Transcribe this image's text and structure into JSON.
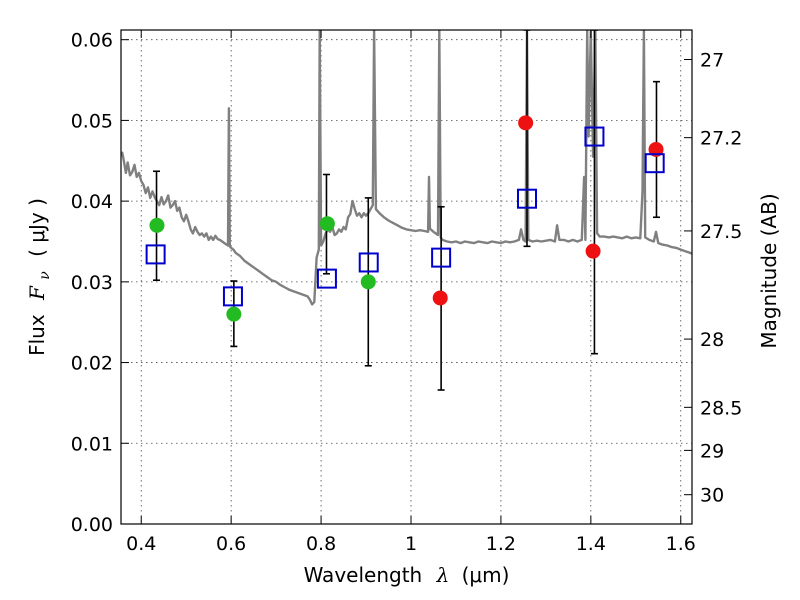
{
  "chart_data": {
    "type": "scatter",
    "title": "",
    "xlabel": {
      "prefix": "Wavelength",
      "symbol": "λ",
      "unit": "(μm)"
    },
    "ylabel": {
      "prefix": "Flux",
      "symbol": "F",
      "subscript": "ν",
      "unit": "( μJy )"
    },
    "y2label": "Magnitude (AB)",
    "xlim": [
      0.355,
      1.625
    ],
    "ylim": [
      0.0,
      0.0612
    ],
    "grid": true,
    "xticks": [
      0.4,
      0.6,
      0.8,
      1.0,
      1.2,
      1.4,
      1.6
    ],
    "xtick_labels": [
      "0.4",
      "0.6",
      "0.8",
      "1",
      "1.2",
      "1.4",
      "1.6"
    ],
    "yticks": [
      0.0,
      0.01,
      0.02,
      0.03,
      0.04,
      0.05,
      0.06
    ],
    "ytick_labels": [
      "0.00",
      "0.01",
      "0.02",
      "0.03",
      "0.04",
      "0.05",
      "0.06"
    ],
    "y2ticks": [
      27,
      27.2,
      27.5,
      28,
      28.5,
      29,
      30
    ],
    "y2tick_labels": [
      "27",
      "27.2",
      "27.5",
      "28",
      "28.5",
      "29",
      "30"
    ],
    "colors": {
      "detected": "#22bb22",
      "non_detected": "#ee1111",
      "model": "#0000cc",
      "template": "#808080",
      "errorbar": "#000000"
    },
    "series": [
      {
        "name": "observed-detections",
        "marker": "circle",
        "points": [
          {
            "x": 0.435,
            "y": 0.037
          },
          {
            "x": 0.606,
            "y": 0.026
          },
          {
            "x": 0.814,
            "y": 0.0372
          },
          {
            "x": 0.905,
            "y": 0.03
          }
        ]
      },
      {
        "name": "observed-low-significance",
        "marker": "circle",
        "points": [
          {
            "x": 1.065,
            "y": 0.028
          },
          {
            "x": 1.255,
            "y": 0.0497
          },
          {
            "x": 1.405,
            "y": 0.0338
          },
          {
            "x": 1.545,
            "y": 0.0464
          }
        ]
      },
      {
        "name": "model-photometry",
        "marker": "open-square",
        "points": [
          {
            "x": 0.432,
            "y": 0.0334
          },
          {
            "x": 0.604,
            "y": 0.0282
          },
          {
            "x": 0.813,
            "y": 0.0304
          },
          {
            "x": 0.906,
            "y": 0.0324
          },
          {
            "x": 1.067,
            "y": 0.033
          },
          {
            "x": 1.258,
            "y": 0.0403
          },
          {
            "x": 1.408,
            "y": 0.048
          },
          {
            "x": 1.542,
            "y": 0.0447
          }
        ]
      }
    ],
    "errorbars": [
      {
        "x": 0.434,
        "low": 0.0302,
        "high": 0.0437
      },
      {
        "x": 0.606,
        "low": 0.022,
        "high": 0.0301
      },
      {
        "x": 0.812,
        "low": 0.031,
        "high": 0.0433
      },
      {
        "x": 0.905,
        "low": 0.0196,
        "high": 0.0404
      },
      {
        "x": 1.067,
        "low": 0.0166,
        "high": 0.0393
      },
      {
        "x": 1.258,
        "low": 0.0344,
        "high": 0.0612
      },
      {
        "x": 1.408,
        "low": 0.0211,
        "high": 0.0612
      },
      {
        "x": 1.546,
        "low": 0.038,
        "high": 0.0548
      }
    ],
    "template_spectrum": [
      [
        0.355,
        0.0456
      ],
      [
        0.358,
        0.046
      ],
      [
        0.362,
        0.0448
      ],
      [
        0.366,
        0.0435
      ],
      [
        0.37,
        0.0448
      ],
      [
        0.375,
        0.0432
      ],
      [
        0.38,
        0.0436
      ],
      [
        0.385,
        0.0445
      ],
      [
        0.39,
        0.043
      ],
      [
        0.395,
        0.0435
      ],
      [
        0.4,
        0.0425
      ],
      [
        0.405,
        0.042
      ],
      [
        0.41,
        0.041
      ],
      [
        0.415,
        0.0417
      ],
      [
        0.42,
        0.0404
      ],
      [
        0.425,
        0.0412
      ],
      [
        0.43,
        0.0405
      ],
      [
        0.435,
        0.04
      ],
      [
        0.44,
        0.0395
      ],
      [
        0.445,
        0.0405
      ],
      [
        0.45,
        0.0396
      ],
      [
        0.455,
        0.04
      ],
      [
        0.46,
        0.0407
      ],
      [
        0.465,
        0.0392
      ],
      [
        0.47,
        0.0395
      ],
      [
        0.475,
        0.04
      ],
      [
        0.48,
        0.0388
      ],
      [
        0.485,
        0.0392
      ],
      [
        0.49,
        0.038
      ],
      [
        0.495,
        0.0375
      ],
      [
        0.5,
        0.0383
      ],
      [
        0.505,
        0.0375
      ],
      [
        0.51,
        0.0365
      ],
      [
        0.515,
        0.036
      ],
      [
        0.52,
        0.0368
      ],
      [
        0.525,
        0.0362
      ],
      [
        0.53,
        0.0358
      ],
      [
        0.535,
        0.036
      ],
      [
        0.54,
        0.0356
      ],
      [
        0.545,
        0.036
      ],
      [
        0.55,
        0.0352
      ],
      [
        0.555,
        0.0356
      ],
      [
        0.56,
        0.0352
      ],
      [
        0.565,
        0.0357
      ],
      [
        0.57,
        0.0353
      ],
      [
        0.575,
        0.0352
      ],
      [
        0.58,
        0.035
      ],
      [
        0.585,
        0.0348
      ],
      [
        0.59,
        0.0346
      ],
      [
        0.593,
        0.0345
      ],
      [
        0.595,
        0.0515
      ],
      [
        0.597,
        0.0344
      ],
      [
        0.6,
        0.0342
      ],
      [
        0.605,
        0.034
      ],
      [
        0.61,
        0.0336
      ],
      [
        0.62,
        0.0332
      ],
      [
        0.63,
        0.0326
      ],
      [
        0.64,
        0.0322
      ],
      [
        0.65,
        0.0318
      ],
      [
        0.66,
        0.0314
      ],
      [
        0.67,
        0.031
      ],
      [
        0.68,
        0.0306
      ],
      [
        0.69,
        0.0302
      ],
      [
        0.7,
        0.03
      ],
      [
        0.71,
        0.0296
      ],
      [
        0.72,
        0.0293
      ],
      [
        0.73,
        0.029
      ],
      [
        0.74,
        0.0288
      ],
      [
        0.75,
        0.0286
      ],
      [
        0.76,
        0.0284
      ],
      [
        0.77,
        0.0282
      ],
      [
        0.775,
        0.0278
      ],
      [
        0.78,
        0.0272
      ],
      [
        0.785,
        0.0275
      ],
      [
        0.79,
        0.033
      ],
      [
        0.795,
        0.034
      ],
      [
        0.797,
        0.0612
      ],
      [
        0.8,
        0.0345
      ],
      [
        0.805,
        0.035
      ],
      [
        0.81,
        0.036
      ],
      [
        0.815,
        0.0365
      ],
      [
        0.82,
        0.0362
      ],
      [
        0.825,
        0.0368
      ],
      [
        0.83,
        0.0358
      ],
      [
        0.835,
        0.036
      ],
      [
        0.84,
        0.0365
      ],
      [
        0.845,
        0.0362
      ],
      [
        0.85,
        0.0368
      ],
      [
        0.855,
        0.0365
      ],
      [
        0.86,
        0.038
      ],
      [
        0.865,
        0.0384
      ],
      [
        0.87,
        0.04
      ],
      [
        0.875,
        0.039
      ],
      [
        0.88,
        0.0382
      ],
      [
        0.885,
        0.0385
      ],
      [
        0.89,
        0.038
      ],
      [
        0.895,
        0.0385
      ],
      [
        0.9,
        0.0382
      ],
      [
        0.905,
        0.0385
      ],
      [
        0.91,
        0.039
      ],
      [
        0.915,
        0.0395
      ],
      [
        0.918,
        0.0612
      ],
      [
        0.922,
        0.039
      ],
      [
        0.93,
        0.0385
      ],
      [
        0.94,
        0.038
      ],
      [
        0.95,
        0.0376
      ],
      [
        0.96,
        0.0373
      ],
      [
        0.97,
        0.037
      ],
      [
        0.98,
        0.0367
      ],
      [
        0.99,
        0.0365
      ],
      [
        1.0,
        0.0364
      ],
      [
        1.01,
        0.0363
      ],
      [
        1.02,
        0.0364
      ],
      [
        1.03,
        0.0363
      ],
      [
        1.038,
        0.0362
      ],
      [
        1.04,
        0.043
      ],
      [
        1.042,
        0.0366
      ],
      [
        1.05,
        0.0362
      ],
      [
        1.055,
        0.036
      ],
      [
        1.06,
        0.0358
      ],
      [
        1.063,
        0.0612
      ],
      [
        1.066,
        0.0355
      ],
      [
        1.07,
        0.0352
      ],
      [
        1.08,
        0.035
      ],
      [
        1.09,
        0.0349
      ],
      [
        1.1,
        0.035
      ],
      [
        1.11,
        0.0348
      ],
      [
        1.12,
        0.035
      ],
      [
        1.13,
        0.0349
      ],
      [
        1.14,
        0.0348
      ],
      [
        1.15,
        0.035
      ],
      [
        1.16,
        0.0349
      ],
      [
        1.17,
        0.0348
      ],
      [
        1.18,
        0.035
      ],
      [
        1.19,
        0.0349
      ],
      [
        1.2,
        0.0348
      ],
      [
        1.21,
        0.035
      ],
      [
        1.22,
        0.0349
      ],
      [
        1.23,
        0.035
      ],
      [
        1.24,
        0.0352
      ],
      [
        1.245,
        0.0365
      ],
      [
        1.25,
        0.0352
      ],
      [
        1.255,
        0.035
      ],
      [
        1.258,
        0.0612
      ],
      [
        1.261,
        0.0352
      ],
      [
        1.27,
        0.035
      ],
      [
        1.28,
        0.0351
      ],
      [
        1.29,
        0.035
      ],
      [
        1.3,
        0.0351
      ],
      [
        1.31,
        0.0352
      ],
      [
        1.32,
        0.035
      ],
      [
        1.325,
        0.037
      ],
      [
        1.33,
        0.0352
      ],
      [
        1.34,
        0.0352
      ],
      [
        1.35,
        0.035
      ],
      [
        1.36,
        0.0352
      ],
      [
        1.37,
        0.035
      ],
      [
        1.38,
        0.0352
      ],
      [
        1.385,
        0.043
      ],
      [
        1.388,
        0.0352
      ],
      [
        1.392,
        0.0612
      ],
      [
        1.395,
        0.048
      ],
      [
        1.4,
        0.061
      ],
      [
        1.405,
        0.0455
      ],
      [
        1.41,
        0.0612
      ],
      [
        1.414,
        0.036
      ],
      [
        1.42,
        0.0356
      ],
      [
        1.43,
        0.0356
      ],
      [
        1.44,
        0.0355
      ],
      [
        1.45,
        0.0356
      ],
      [
        1.46,
        0.0355
      ],
      [
        1.47,
        0.0354
      ],
      [
        1.48,
        0.0356
      ],
      [
        1.49,
        0.0354
      ],
      [
        1.5,
        0.0355
      ],
      [
        1.51,
        0.0354
      ],
      [
        1.515,
        0.0412
      ],
      [
        1.518,
        0.0612
      ],
      [
        1.521,
        0.0355
      ],
      [
        1.53,
        0.0352
      ],
      [
        1.54,
        0.035
      ],
      [
        1.545,
        0.0362
      ],
      [
        1.55,
        0.0348
      ],
      [
        1.56,
        0.0346
      ],
      [
        1.57,
        0.0345
      ],
      [
        1.58,
        0.0343
      ],
      [
        1.59,
        0.0342
      ],
      [
        1.6,
        0.034
      ],
      [
        1.61,
        0.0338
      ],
      [
        1.62,
        0.0336
      ],
      [
        1.625,
        0.0335
      ]
    ]
  }
}
